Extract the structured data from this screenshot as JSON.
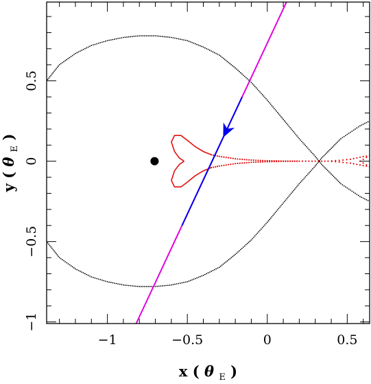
{
  "chart_data": {
    "type": "line",
    "xlabel": "x",
    "ylabel": "y",
    "axis_unit": "θ",
    "axis_unit_sub": "E",
    "xlim": [
      -1.38,
      0.64
    ],
    "ylim": [
      -1.01,
      0.99
    ],
    "xticks": [
      {
        "value": -1,
        "label": "−1"
      },
      {
        "value": -0.5,
        "label": "−0.5"
      },
      {
        "value": 0,
        "label": "0"
      },
      {
        "value": 0.5,
        "label": "0.5"
      }
    ],
    "yticks": [
      {
        "value": -1,
        "label": "−1"
      },
      {
        "value": -0.5,
        "label": "−0.5"
      },
      {
        "value": 0,
        "label": "0"
      },
      {
        "value": 0.5,
        "label": "0.5"
      }
    ],
    "x_minor_step": 0.1,
    "y_minor_step": 0.1,
    "grid": false,
    "colors": {
      "critical_curve": "#000000",
      "caustic": "#e01010",
      "trajectory_outer": "#e000e0",
      "trajectory_inner": "#0000ee",
      "lens_mass": "#000000"
    },
    "lens_mass_point": {
      "x": -0.705,
      "y": 0.0
    },
    "trajectory": {
      "start": {
        "x": -0.82,
        "y": -1.01
      },
      "end": {
        "x": 0.12,
        "y": 0.99
      },
      "highlight_from_y": -0.4,
      "highlight_to_y": 0.4,
      "arrow_at_y": 0.19,
      "direction": "toward-negative-y"
    },
    "series": [
      {
        "kind": "critical-curve-upper",
        "points": [
          [
            -1.38,
            0.5
          ],
          [
            -1.3,
            0.6
          ],
          [
            -1.2,
            0.67
          ],
          [
            -1.1,
            0.72
          ],
          [
            -1.0,
            0.75
          ],
          [
            -0.9,
            0.77
          ],
          [
            -0.8,
            0.78
          ],
          [
            -0.7,
            0.78
          ],
          [
            -0.6,
            0.77
          ],
          [
            -0.5,
            0.75
          ],
          [
            -0.4,
            0.71
          ],
          [
            -0.3,
            0.66
          ],
          [
            -0.2,
            0.58
          ],
          [
            -0.1,
            0.49
          ],
          [
            0.0,
            0.38
          ],
          [
            0.1,
            0.26
          ],
          [
            0.2,
            0.14
          ],
          [
            0.3,
            0.03
          ],
          [
            0.34,
            -0.02
          ],
          [
            0.4,
            -0.08
          ],
          [
            0.46,
            -0.14
          ],
          [
            0.52,
            -0.18
          ],
          [
            0.58,
            -0.22
          ],
          [
            0.64,
            -0.25
          ]
        ]
      },
      {
        "kind": "critical-curve-lower",
        "points": [
          [
            -1.38,
            -0.5
          ],
          [
            -1.3,
            -0.6
          ],
          [
            -1.2,
            -0.67
          ],
          [
            -1.1,
            -0.72
          ],
          [
            -1.0,
            -0.75
          ],
          [
            -0.9,
            -0.77
          ],
          [
            -0.8,
            -0.78
          ],
          [
            -0.7,
            -0.78
          ],
          [
            -0.6,
            -0.77
          ],
          [
            -0.5,
            -0.75
          ],
          [
            -0.4,
            -0.71
          ],
          [
            -0.3,
            -0.66
          ],
          [
            -0.2,
            -0.58
          ],
          [
            -0.1,
            -0.49
          ],
          [
            0.0,
            -0.38
          ],
          [
            0.1,
            -0.26
          ],
          [
            0.2,
            -0.14
          ],
          [
            0.3,
            -0.03
          ],
          [
            0.34,
            0.02
          ],
          [
            0.4,
            0.08
          ],
          [
            0.46,
            0.14
          ],
          [
            0.52,
            0.18
          ],
          [
            0.58,
            0.22
          ],
          [
            0.64,
            0.25
          ]
        ]
      },
      {
        "kind": "caustic-upper",
        "points": [
          [
            -0.52,
            0.0
          ],
          [
            -0.55,
            0.02
          ],
          [
            -0.58,
            0.06
          ],
          [
            -0.6,
            0.12
          ],
          [
            -0.58,
            0.16
          ],
          [
            -0.54,
            0.16
          ],
          [
            -0.5,
            0.13
          ],
          [
            -0.45,
            0.09
          ],
          [
            -0.4,
            0.06
          ],
          [
            -0.35,
            0.04
          ],
          [
            -0.3,
            0.03
          ],
          [
            -0.2,
            0.015
          ],
          [
            -0.1,
            0.007
          ],
          [
            0.0,
            0.003
          ],
          [
            0.1,
            0.001
          ],
          [
            0.2,
            0.0
          ]
        ]
      },
      {
        "kind": "caustic-lower",
        "points": [
          [
            -0.52,
            0.0
          ],
          [
            -0.55,
            -0.02
          ],
          [
            -0.58,
            -0.06
          ],
          [
            -0.6,
            -0.12
          ],
          [
            -0.58,
            -0.16
          ],
          [
            -0.54,
            -0.16
          ],
          [
            -0.5,
            -0.13
          ],
          [
            -0.45,
            -0.09
          ],
          [
            -0.4,
            -0.06
          ],
          [
            -0.35,
            -0.04
          ],
          [
            -0.3,
            -0.03
          ],
          [
            -0.2,
            -0.015
          ],
          [
            -0.1,
            -0.007
          ],
          [
            0.0,
            -0.003
          ],
          [
            0.1,
            -0.001
          ],
          [
            0.2,
            0.0
          ]
        ]
      },
      {
        "kind": "caustic-right",
        "points": [
          [
            0.2,
            0.0
          ],
          [
            0.3,
            0.0
          ],
          [
            0.38,
            0.0
          ],
          [
            0.45,
            0.005
          ],
          [
            0.52,
            0.012
          ],
          [
            0.58,
            0.025
          ],
          [
            0.64,
            0.035
          ],
          [
            0.58,
            0.0
          ],
          [
            0.64,
            -0.035
          ],
          [
            0.52,
            -0.012
          ],
          [
            0.45,
            -0.005
          ],
          [
            0.38,
            0.0
          ]
        ]
      }
    ]
  }
}
